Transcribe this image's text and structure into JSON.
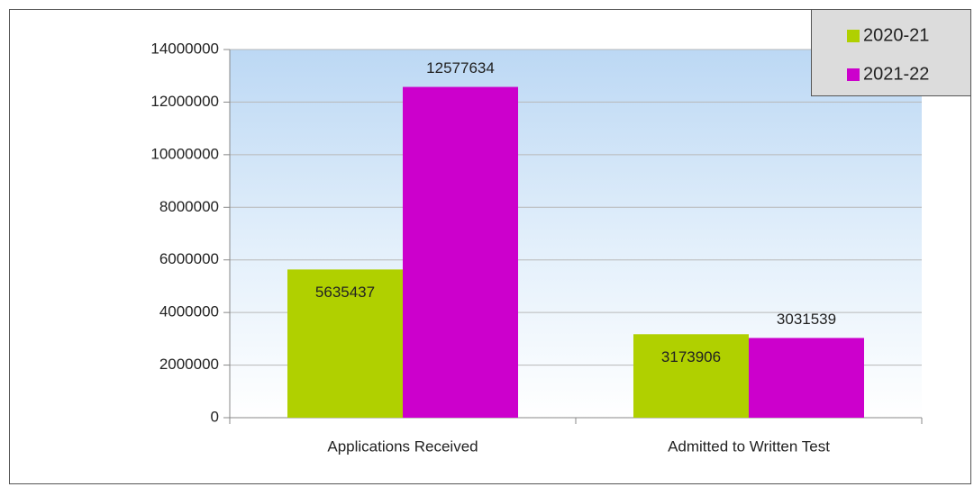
{
  "chart_data": {
    "type": "bar",
    "categories": [
      "Applications Received",
      "Admitted to Written Test"
    ],
    "series": [
      {
        "name": "2020-21",
        "color": "#b0d000",
        "values": [
          5635437,
          3173906
        ]
      },
      {
        "name": "2021-22",
        "color": "#cc00cc",
        "values": [
          12577634,
          3031539
        ]
      }
    ],
    "ylim": [
      0,
      14000000
    ],
    "yticks": [
      0,
      2000000,
      4000000,
      6000000,
      8000000,
      10000000,
      12000000,
      14000000
    ],
    "grid": true,
    "legend": "top-right"
  }
}
